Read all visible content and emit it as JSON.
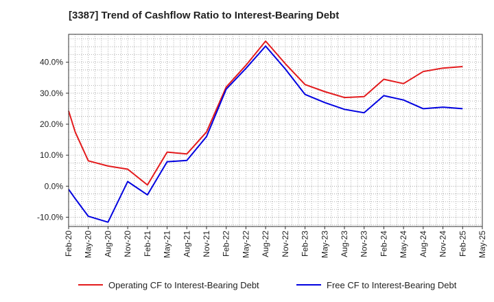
{
  "title": "[3387]  Trend of Cashflow Ratio to Interest-Bearing Debt",
  "chart_data": {
    "type": "line",
    "title": "[3387]  Trend of Cashflow Ratio to Interest-Bearing Debt",
    "xlabel": "",
    "ylabel": "",
    "x_tick_labels": [
      "Feb-20",
      "May-20",
      "Aug-20",
      "Nov-20",
      "Feb-21",
      "May-21",
      "Aug-21",
      "Nov-21",
      "Feb-22",
      "May-22",
      "Aug-22",
      "Nov-22",
      "Feb-23",
      "May-23",
      "Aug-23",
      "Nov-23",
      "Feb-24",
      "May-24",
      "Aug-24",
      "Nov-24",
      "Feb-25",
      "May-25"
    ],
    "y_tick_labels": [
      "-10.0%",
      "0.0%",
      "10.0%",
      "20.0%",
      "30.0%",
      "40.0%"
    ],
    "y_ticks": [
      -10,
      0,
      10,
      20,
      30,
      40
    ],
    "ylim": [
      -13,
      49
    ],
    "grid": true,
    "legend_position": "bottom",
    "series": [
      {
        "name": "Operating CF to Interest-Bearing Debt",
        "color": "#e31a1c",
        "x": [
          "Feb-20",
          "Mar-20",
          "May-20",
          "Aug-20",
          "Nov-20",
          "Feb-21",
          "May-21",
          "Aug-21",
          "Nov-21",
          "Feb-22",
          "May-22",
          "Aug-22",
          "Nov-22",
          "Feb-23",
          "May-23",
          "Aug-23",
          "Nov-23",
          "Feb-24",
          "May-24",
          "Aug-24",
          "Nov-24",
          "Feb-25"
        ],
        "values": [
          24.3,
          17.5,
          8.2,
          6.5,
          5.5,
          0.4,
          11.0,
          10.4,
          17.5,
          32.0,
          39.0,
          46.8,
          39.5,
          32.8,
          30.5,
          28.6,
          28.9,
          34.5,
          33.1,
          37.0,
          38.1,
          38.6
        ]
      },
      {
        "name": "Free CF to Interest-Bearing Debt",
        "color": "#0000e0",
        "x": [
          "Feb-20",
          "Mar-20",
          "May-20",
          "Aug-20",
          "Nov-20",
          "Feb-21",
          "May-21",
          "Aug-21",
          "Nov-21",
          "Feb-22",
          "May-22",
          "Aug-22",
          "Nov-22",
          "Feb-23",
          "May-23",
          "Aug-23",
          "Nov-23",
          "Feb-24",
          "May-24",
          "Aug-24",
          "Nov-24",
          "Feb-25"
        ],
        "values": [
          -1.0,
          -4.0,
          -9.7,
          -11.6,
          1.5,
          -2.8,
          7.9,
          8.3,
          16.0,
          31.3,
          38.0,
          45.2,
          37.8,
          29.6,
          27.0,
          24.8,
          23.7,
          29.2,
          27.8,
          25.0,
          25.5,
          25.0
        ]
      }
    ]
  },
  "colors": {
    "grid": "#999999",
    "axis": "#333333",
    "background": "#ffffff"
  }
}
